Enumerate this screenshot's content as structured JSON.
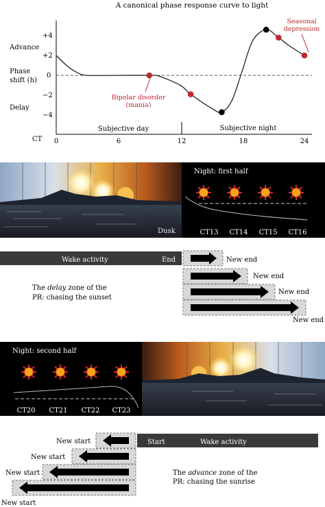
{
  "prc": {
    "title": "A canonical phase response curve to light",
    "row_labels": {
      "advance": "Advance",
      "phase_shift_line1": "Phase",
      "phase_shift_line2": "shift (h)",
      "delay": "Delay",
      "ct": "CT"
    },
    "y_ticks": [
      "+4",
      "+2",
      "0",
      "−2",
      "−4"
    ],
    "x_ticks": [
      "0",
      "6",
      "12",
      "18",
      "24"
    ],
    "subjective_day": "Subjective day",
    "subjective_night": "Subjective night",
    "bipolar_line1": "Bipolar disorder",
    "bipolar_line2": "(mania)",
    "seasonal_line1": "Seasonal",
    "seasonal_line2": "depression",
    "accent_color": "#c0272d"
  },
  "chart_data": {
    "type": "line",
    "title": "A canonical phase response curve to light",
    "xlabel": "CT",
    "ylabel": "Phase shift (h)",
    "xlim": [
      0,
      24
    ],
    "ylim": [
      -4,
      4
    ],
    "x": [
      0,
      1,
      2,
      3,
      6,
      9,
      10,
      12,
      13,
      15,
      16,
      17,
      18,
      19,
      20.3,
      21.5,
      22.5,
      24
    ],
    "y": [
      2,
      1,
      0.3,
      0,
      0,
      0,
      -0.1,
      -1,
      -1.9,
      -3.3,
      -3.7,
      -2.5,
      0.5,
      3.5,
      4.6,
      3.8,
      3,
      2
    ],
    "highlight_points": [
      {
        "x": 9,
        "y": 0,
        "color": "#c0272d",
        "annotation": "Bipolar disorder (mania)"
      },
      {
        "x": 13,
        "y": -1.9,
        "color": "#c0272d"
      },
      {
        "x": 16,
        "y": -3.7,
        "color": "#000000"
      },
      {
        "x": 20.3,
        "y": 4.6,
        "color": "#000000"
      },
      {
        "x": 21.5,
        "y": 3.8,
        "color": "#c0272d",
        "annotation": "Seasonal depression"
      },
      {
        "x": 24,
        "y": 2,
        "color": "#c0272d"
      }
    ]
  },
  "sunset_panel": {
    "dusk": "Dusk",
    "night_first_half": "Night: first half",
    "ct_labels": [
      "CT13",
      "CT14",
      "CT15",
      "CT16"
    ]
  },
  "delay_zone": {
    "wake_activity": "Wake activity",
    "end": "End",
    "new_end": "New end",
    "caption_pre": "The ",
    "caption_em": "delay",
    "caption_post": " zone of the",
    "caption_line2": "PR: chasing the sunset"
  },
  "sunrise_panel": {
    "night_second_half": "Night: second half",
    "ct_labels": [
      "CT20",
      "CT21",
      "CT22",
      "CT23"
    ]
  },
  "advance_zone": {
    "start": "Start",
    "wake_activity": "Wake activity",
    "new_start": "New start",
    "caption_pre": "The ",
    "caption_em": "advance",
    "caption_post": " zone of the",
    "caption_line2": "PR: chasing the sunrise"
  }
}
